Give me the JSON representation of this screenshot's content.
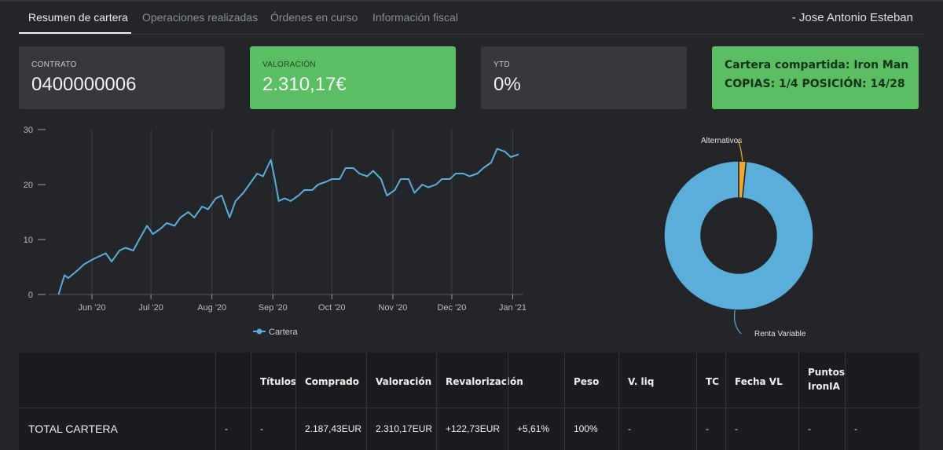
{
  "tabs": [
    {
      "label": "Resumen de cartera",
      "active": true
    },
    {
      "label": "Operaciones realizadas",
      "active": false
    },
    {
      "label": "Órdenes en curso",
      "active": false
    },
    {
      "label": "Información fiscal",
      "active": false
    }
  ],
  "user": {
    "name": "- Jose Antonio Esteban"
  },
  "cards": {
    "contrato": {
      "label": "CONTRATO",
      "value": "0400000006"
    },
    "valoracion": {
      "label": "VALORACIÓN",
      "value": "2.310,17€"
    },
    "ytd": {
      "label": "YTD",
      "value": "0%"
    },
    "shared": {
      "line1": "Cartera compartida: Iron Man",
      "line2": "COPIAS: 1/4 POSICIÓN: 14/28"
    }
  },
  "colors": {
    "accent_green": "#5cbe63",
    "line_blue": "#5aaed9",
    "pie_orange": "#f0a830",
    "background": "#232529"
  },
  "chart_data": [
    {
      "type": "line",
      "xlabels": [
        "Jun '20",
        "Jul '20",
        "Aug '20",
        "Sep '20",
        "Oct '20",
        "Nov '20",
        "Dec '20",
        "Jan '21"
      ],
      "yticks": [
        0,
        10,
        20,
        30
      ],
      "ylim": [
        0,
        30
      ],
      "legend": "bottom-center",
      "series": [
        {
          "name": "Cartera",
          "x": [
            "2020-05-15",
            "2020-05-18",
            "2020-05-20",
            "2020-05-25",
            "2020-05-28",
            "2020-06-02",
            "2020-06-05",
            "2020-06-08",
            "2020-06-11",
            "2020-06-15",
            "2020-06-18",
            "2020-06-22",
            "2020-06-25",
            "2020-06-29",
            "2020-07-02",
            "2020-07-06",
            "2020-07-09",
            "2020-07-13",
            "2020-07-16",
            "2020-07-20",
            "2020-07-23",
            "2020-07-27",
            "2020-07-30",
            "2020-08-03",
            "2020-08-06",
            "2020-08-10",
            "2020-08-13",
            "2020-08-17",
            "2020-08-20",
            "2020-08-24",
            "2020-08-27",
            "2020-08-31",
            "2020-09-02",
            "2020-09-04",
            "2020-09-07",
            "2020-09-10",
            "2020-09-14",
            "2020-09-17",
            "2020-09-21",
            "2020-09-24",
            "2020-09-28",
            "2020-10-01",
            "2020-10-05",
            "2020-10-08",
            "2020-10-12",
            "2020-10-15",
            "2020-10-19",
            "2020-10-22",
            "2020-10-26",
            "2020-10-29",
            "2020-11-02",
            "2020-11-05",
            "2020-11-09",
            "2020-11-12",
            "2020-11-16",
            "2020-11-19",
            "2020-11-23",
            "2020-11-26",
            "2020-11-30",
            "2020-12-03",
            "2020-12-07",
            "2020-12-10",
            "2020-12-14",
            "2020-12-17",
            "2020-12-21",
            "2020-12-24",
            "2020-12-28",
            "2020-12-31",
            "2021-01-04"
          ],
          "values": [
            0,
            3.5,
            3,
            4.5,
            5.5,
            6.5,
            7,
            7.5,
            6,
            8,
            8.5,
            8,
            10,
            12.5,
            11,
            12,
            13,
            12.5,
            14,
            15,
            14,
            16,
            15.5,
            17.5,
            18,
            14,
            17,
            18.5,
            20,
            22,
            21.5,
            24.5,
            21,
            17,
            17.5,
            17,
            18,
            19,
            19,
            20,
            20.5,
            21,
            21,
            23,
            23,
            22,
            21.5,
            22.5,
            21,
            18,
            19,
            21,
            21,
            18.5,
            20,
            19.5,
            20,
            21,
            21,
            22,
            22,
            21.5,
            22,
            23,
            24,
            26.5,
            26,
            25,
            25.5
          ]
        }
      ]
    },
    {
      "type": "pie",
      "donut": true,
      "labels": [
        "Alternativos",
        "Renta Variable"
      ],
      "values": [
        1.6,
        98.4
      ]
    }
  ],
  "table": {
    "headers": [
      "",
      "",
      "Títulos",
      "Comprado",
      "Valoración",
      "Revalorización",
      "",
      "Peso",
      "V. liq",
      "TC",
      "Fecha VL",
      "Puntos IronIA",
      ""
    ],
    "total_row": [
      "TOTAL CARTERA",
      "-",
      "-",
      "2.187,43EUR",
      "2.310,17EUR",
      "+122,73EUR",
      "+5,61%",
      "100%",
      "-",
      "-",
      "-",
      "-",
      "-"
    ]
  }
}
